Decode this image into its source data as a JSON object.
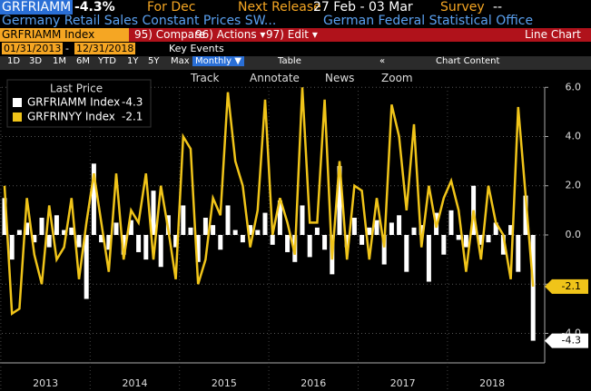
{
  "header": {
    "ticker": "GRFRIAMM",
    "change": "-4.3%",
    "period": "For Dec",
    "release_label": "Next Release",
    "release_dates": "27 Feb - 03 Mar",
    "survey_label": "Survey",
    "survey_value": "--",
    "description": "Germany Retail Sales Constant Prices SW...",
    "source": "German Federal Statistical Office"
  },
  "toolbar": {
    "security": "GRFRIAMM Index",
    "compare": "95) Compare",
    "actions": "96) Actions ▾",
    "edit": "97) Edit ▾",
    "chart_kind": "Line Chart",
    "start_date": "01/31/2013",
    "date_sep": "-",
    "end_date": "12/31/2018",
    "key_events": "Key Events",
    "ranges": [
      "1D",
      "3D",
      "1M",
      "6M",
      "YTD",
      "1Y",
      "5Y",
      "Max"
    ],
    "frequency": "Monthly ▼",
    "table": "Table",
    "collapse": "«",
    "chart_content": "Chart Content",
    "tools": [
      "Track",
      "Annotate",
      "News",
      "Zoom"
    ]
  },
  "chart_data": {
    "type": "combo",
    "legend_title": "Last Price",
    "legend": "upper left",
    "grid": true,
    "x_labels": [
      "2013",
      "2014",
      "2015",
      "2016",
      "2017",
      "2018"
    ],
    "ylim": [
      -5.2,
      6.6
    ],
    "yticks": [
      {
        "value": 6,
        "label": "6.0"
      },
      {
        "value": 4,
        "label": "4.0"
      },
      {
        "value": 2,
        "label": "2.0"
      },
      {
        "value": 0,
        "label": "0.0"
      },
      {
        "value": -2,
        "label": "-2.0"
      },
      {
        "value": -4,
        "label": "-4.0"
      }
    ],
    "series": [
      {
        "name": "GRFRIAMM Index",
        "type": "bar",
        "color": "#ffffff",
        "values": [
          1.5,
          -1.0,
          0.2,
          0.5,
          -0.3,
          0.7,
          -0.5,
          0.8,
          0.2,
          0.3,
          -0.5,
          -2.6,
          2.9,
          -0.3,
          -0.6,
          0.5,
          -0.8,
          0.6,
          -0.7,
          -1.0,
          1.8,
          -1.3,
          0.8,
          -0.5,
          1.2,
          0.3,
          -1.1,
          0.7,
          0.4,
          -0.6,
          1.2,
          0.2,
          -0.3,
          0.4,
          0.2,
          0.9,
          -0.4,
          1.4,
          -0.7,
          -1.1,
          1.2,
          -0.9,
          0.3,
          -0.6,
          -1.6,
          2.8,
          -0.5,
          0.7,
          -0.4,
          0.3,
          0.6,
          -1.2,
          0.5,
          0.8,
          -1.5,
          0.3,
          0.4,
          -1.9,
          0.9,
          -0.8,
          1.0,
          -0.2,
          -0.5,
          2.0,
          -0.4,
          -0.3,
          0.5,
          -0.8,
          0.4,
          -1.5,
          1.6,
          -4.3
        ]
      },
      {
        "name": "GRFRINYY Index",
        "type": "line",
        "color": "#f0c419",
        "values": [
          2.0,
          -3.2,
          -3.0,
          1.5,
          -0.8,
          -2.0,
          1.2,
          -1.0,
          -0.5,
          1.5,
          -1.8,
          0.5,
          2.5,
          0.5,
          -1.5,
          2.5,
          -1.0,
          1.0,
          0.5,
          2.5,
          -1.0,
          2.0,
          0.2,
          -1.8,
          4.0,
          3.5,
          -2.0,
          -1.0,
          1.5,
          0.8,
          5.8,
          3.0,
          2.0,
          -0.5,
          1.0,
          5.5,
          0.0,
          1.5,
          0.5,
          -0.8,
          6.0,
          0.5,
          0.5,
          5.5,
          -1.0,
          3.0,
          -1.0,
          2.0,
          1.8,
          -1.0,
          1.5,
          -0.5,
          5.3,
          4.0,
          1.0,
          4.5,
          -0.5,
          2.0,
          0.3,
          1.5,
          2.2,
          1.0,
          -1.5,
          1.0,
          -1.0,
          2.0,
          0.5,
          0.0,
          -1.8,
          5.2,
          1.6,
          -2.1
        ]
      }
    ]
  }
}
